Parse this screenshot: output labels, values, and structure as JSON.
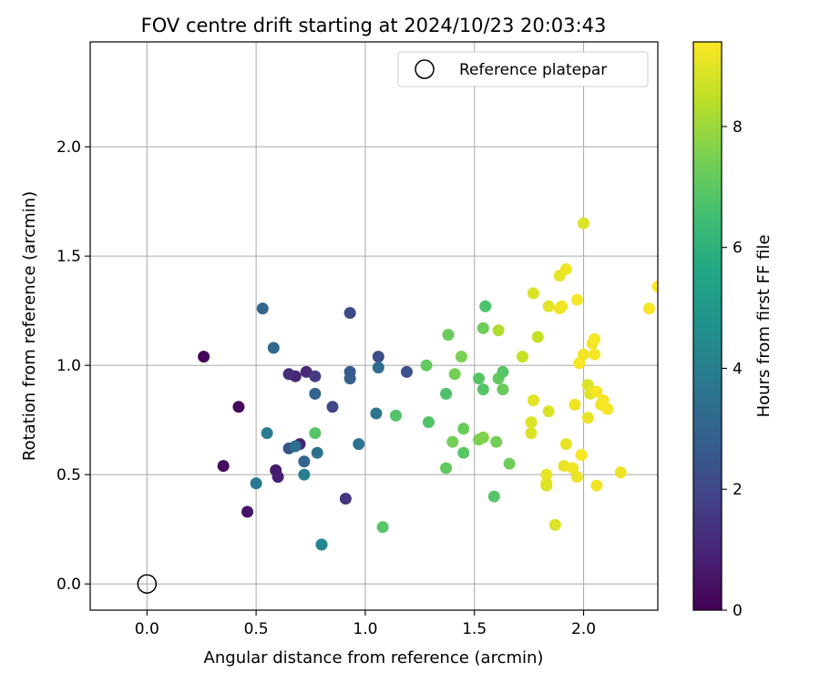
{
  "chart_data": {
    "type": "scatter",
    "title": "FOV centre drift starting at 2024/10/23 20:03:43",
    "xlabel": "Angular distance from reference (arcmin)",
    "ylabel": "Rotation from reference (arcmin)",
    "xlim": [
      -0.26,
      2.34
    ],
    "ylim": [
      -0.12,
      2.48
    ],
    "xticks": [
      "0.0",
      "0.5",
      "1.0",
      "1.5",
      "2.0"
    ],
    "xtick_values": [
      0.0,
      0.5,
      1.0,
      1.5,
      2.0
    ],
    "yticks": [
      "0.0",
      "0.5",
      "1.0",
      "1.5",
      "2.0"
    ],
    "ytick_values": [
      0.0,
      0.5,
      1.0,
      1.5,
      2.0
    ],
    "grid": true,
    "legend": {
      "placement": "top-right",
      "entries": [
        "Reference platepar"
      ]
    },
    "colorbar": {
      "label": "Hours from first FF file",
      "colormap": "viridis",
      "range": [
        0,
        9.4
      ],
      "ticks": [
        "0",
        "2",
        "4",
        "6",
        "8"
      ],
      "tick_values": [
        0,
        2,
        4,
        6,
        8
      ]
    },
    "reference_point": {
      "x": 0.0,
      "y": 0.0,
      "marker": "open-circle",
      "color": "#000000"
    },
    "points": [
      {
        "x": 0.26,
        "y": 1.04,
        "c": 0.1
      },
      {
        "x": 0.42,
        "y": 0.81,
        "c": 0.2
      },
      {
        "x": 0.35,
        "y": 0.54,
        "c": 0.3
      },
      {
        "x": 0.46,
        "y": 0.33,
        "c": 0.5
      },
      {
        "x": 0.59,
        "y": 0.52,
        "c": 0.7
      },
      {
        "x": 0.6,
        "y": 0.49,
        "c": 0.8
      },
      {
        "x": 0.7,
        "y": 0.64,
        "c": 0.9
      },
      {
        "x": 0.68,
        "y": 0.95,
        "c": 1.0
      },
      {
        "x": 0.73,
        "y": 0.97,
        "c": 1.1
      },
      {
        "x": 0.65,
        "y": 0.96,
        "c": 1.3
      },
      {
        "x": 0.91,
        "y": 0.39,
        "c": 1.4
      },
      {
        "x": 0.77,
        "y": 0.95,
        "c": 1.6
      },
      {
        "x": 0.85,
        "y": 0.81,
        "c": 2.0
      },
      {
        "x": 0.93,
        "y": 1.24,
        "c": 2.1
      },
      {
        "x": 1.06,
        "y": 1.04,
        "c": 2.2
      },
      {
        "x": 1.19,
        "y": 0.97,
        "c": 2.3
      },
      {
        "x": 0.65,
        "y": 0.62,
        "c": 2.5
      },
      {
        "x": 0.93,
        "y": 0.97,
        "c": 2.6
      },
      {
        "x": 0.93,
        "y": 0.94,
        "c": 2.8
      },
      {
        "x": 0.72,
        "y": 0.56,
        "c": 3.0
      },
      {
        "x": 0.77,
        "y": 0.87,
        "c": 3.0
      },
      {
        "x": 0.53,
        "y": 1.26,
        "c": 3.1
      },
      {
        "x": 0.58,
        "y": 1.08,
        "c": 3.2
      },
      {
        "x": 1.06,
        "y": 0.99,
        "c": 3.3
      },
      {
        "x": 0.68,
        "y": 0.63,
        "c": 3.4
      },
      {
        "x": 0.78,
        "y": 0.6,
        "c": 3.5
      },
      {
        "x": 0.97,
        "y": 0.64,
        "c": 3.6
      },
      {
        "x": 1.05,
        "y": 0.78,
        "c": 3.7
      },
      {
        "x": 0.5,
        "y": 0.46,
        "c": 3.8
      },
      {
        "x": 0.55,
        "y": 0.69,
        "c": 3.9
      },
      {
        "x": 0.72,
        "y": 0.5,
        "c": 4.0
      },
      {
        "x": 0.8,
        "y": 0.18,
        "c": 4.2
      },
      {
        "x": 0.8,
        "y": 0.18,
        "c": 4.3
      },
      {
        "x": 1.08,
        "y": 0.26,
        "c": 6.9
      },
      {
        "x": 0.77,
        "y": 0.69,
        "c": 6.9
      },
      {
        "x": 1.14,
        "y": 0.77,
        "c": 6.8
      },
      {
        "x": 1.29,
        "y": 0.74,
        "c": 6.8
      },
      {
        "x": 1.28,
        "y": 1.0,
        "c": 7.1
      },
      {
        "x": 1.37,
        "y": 0.87,
        "c": 6.7
      },
      {
        "x": 1.38,
        "y": 1.14,
        "c": 7.2
      },
      {
        "x": 1.37,
        "y": 0.53,
        "c": 7.1
      },
      {
        "x": 1.4,
        "y": 0.65,
        "c": 7.4
      },
      {
        "x": 1.41,
        "y": 0.96,
        "c": 7.4
      },
      {
        "x": 1.44,
        "y": 1.04,
        "c": 7.5
      },
      {
        "x": 1.45,
        "y": 0.6,
        "c": 6.9
      },
      {
        "x": 1.45,
        "y": 0.71,
        "c": 7.2
      },
      {
        "x": 1.52,
        "y": 0.94,
        "c": 6.9
      },
      {
        "x": 1.52,
        "y": 0.66,
        "c": 7.5
      },
      {
        "x": 1.54,
        "y": 0.67,
        "c": 7.6
      },
      {
        "x": 1.54,
        "y": 0.89,
        "c": 6.9
      },
      {
        "x": 1.55,
        "y": 1.27,
        "c": 6.7
      },
      {
        "x": 1.54,
        "y": 1.17,
        "c": 7.3
      },
      {
        "x": 1.59,
        "y": 0.4,
        "c": 6.9
      },
      {
        "x": 1.6,
        "y": 0.65,
        "c": 7.4
      },
      {
        "x": 1.61,
        "y": 0.94,
        "c": 7.1
      },
      {
        "x": 1.61,
        "y": 1.16,
        "c": 8.3
      },
      {
        "x": 1.63,
        "y": 0.89,
        "c": 7.2
      },
      {
        "x": 1.63,
        "y": 0.97,
        "c": 6.9
      },
      {
        "x": 1.66,
        "y": 0.55,
        "c": 7.3
      },
      {
        "x": 1.72,
        "y": 1.04,
        "c": 8.6
      },
      {
        "x": 1.76,
        "y": 0.69,
        "c": 8.9
      },
      {
        "x": 1.76,
        "y": 0.74,
        "c": 8.9
      },
      {
        "x": 1.77,
        "y": 0.84,
        "c": 9.0
      },
      {
        "x": 1.77,
        "y": 1.33,
        "c": 8.9
      },
      {
        "x": 1.79,
        "y": 1.13,
        "c": 8.6
      },
      {
        "x": 1.83,
        "y": 0.46,
        "c": 9.1
      },
      {
        "x": 1.83,
        "y": 0.5,
        "c": 9.1
      },
      {
        "x": 1.83,
        "y": 0.45,
        "c": 8.9
      },
      {
        "x": 1.84,
        "y": 0.79,
        "c": 8.9
      },
      {
        "x": 1.84,
        "y": 1.27,
        "c": 9.0
      },
      {
        "x": 1.87,
        "y": 0.27,
        "c": 8.9
      },
      {
        "x": 1.89,
        "y": 1.41,
        "c": 9.1
      },
      {
        "x": 1.89,
        "y": 1.26,
        "c": 9.2
      },
      {
        "x": 1.9,
        "y": 1.27,
        "c": 9.2
      },
      {
        "x": 1.92,
        "y": 1.44,
        "c": 9.2
      },
      {
        "x": 1.91,
        "y": 0.54,
        "c": 9.1
      },
      {
        "x": 1.92,
        "y": 0.64,
        "c": 9.1
      },
      {
        "x": 1.95,
        "y": 0.53,
        "c": 9.2
      },
      {
        "x": 1.96,
        "y": 0.82,
        "c": 9.2
      },
      {
        "x": 1.97,
        "y": 0.49,
        "c": 9.1
      },
      {
        "x": 1.97,
        "y": 1.3,
        "c": 9.3
      },
      {
        "x": 1.98,
        "y": 1.01,
        "c": 9.3
      },
      {
        "x": 1.99,
        "y": 0.59,
        "c": 9.3
      },
      {
        "x": 2.0,
        "y": 1.65,
        "c": 8.9
      },
      {
        "x": 2.0,
        "y": 1.05,
        "c": 9.2
      },
      {
        "x": 2.02,
        "y": 0.76,
        "c": 9.1
      },
      {
        "x": 2.02,
        "y": 0.91,
        "c": 8.9
      },
      {
        "x": 2.03,
        "y": 0.87,
        "c": 9.0
      },
      {
        "x": 2.04,
        "y": 1.1,
        "c": 9.2
      },
      {
        "x": 2.05,
        "y": 1.12,
        "c": 9.3
      },
      {
        "x": 2.05,
        "y": 1.05,
        "c": 9.3
      },
      {
        "x": 2.06,
        "y": 0.88,
        "c": 9.3
      },
      {
        "x": 2.06,
        "y": 0.45,
        "c": 9.2
      },
      {
        "x": 2.08,
        "y": 0.82,
        "c": 9.2
      },
      {
        "x": 2.09,
        "y": 0.84,
        "c": 9.3
      },
      {
        "x": 2.11,
        "y": 0.8,
        "c": 9.3
      },
      {
        "x": 2.17,
        "y": 0.51,
        "c": 9.2
      },
      {
        "x": 2.3,
        "y": 1.26,
        "c": 9.3
      },
      {
        "x": 2.34,
        "y": 1.36,
        "c": 9.4
      }
    ]
  }
}
